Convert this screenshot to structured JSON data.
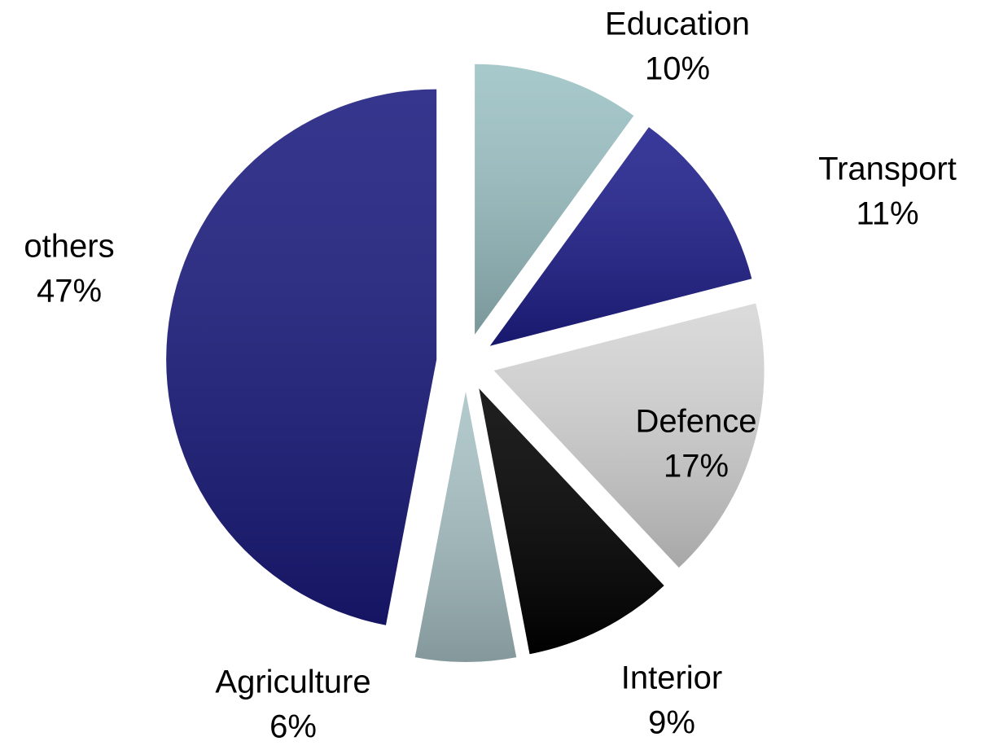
{
  "chart_data": {
    "type": "pie",
    "categories": [
      "Education",
      "Transport",
      "Defence",
      "Interior",
      "Agriculture",
      "others"
    ],
    "values": [
      10,
      11,
      17,
      9,
      6,
      47
    ],
    "value_labels": [
      "10%",
      "11%",
      "17%",
      "9%",
      "6%",
      "47%"
    ],
    "colors": [
      "#9cc2c5",
      "#1e1e8c",
      "#d6d6d6",
      "#000000",
      "#a9c3c6",
      "#1a1a7e"
    ]
  }
}
